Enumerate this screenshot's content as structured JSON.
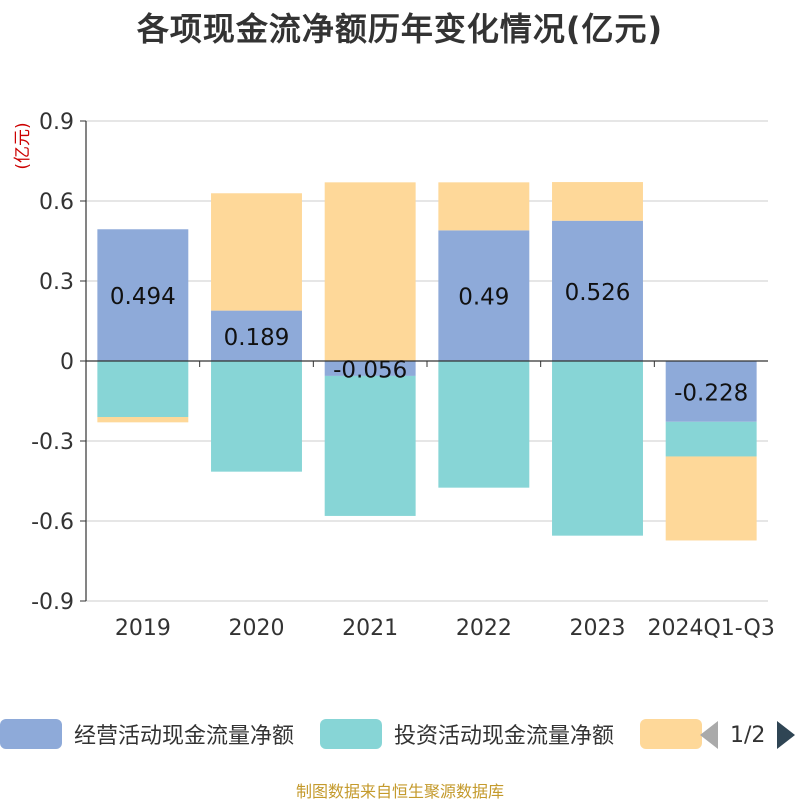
{
  "title": "各项现金流净额历年变化情况(亿元)",
  "unit_label": "(亿元)",
  "source_note": "制图数据来自恒生聚源数据库",
  "legend": {
    "items": [
      {
        "label": "经营活动现金流量净额",
        "color": "#8eaad9"
      },
      {
        "label": "投资活动现金流量净额",
        "color": "#87d5d6"
      },
      {
        "label": "",
        "color": "#fed899"
      }
    ],
    "page": "1/2"
  },
  "chart_data": {
    "type": "bar",
    "stacked": true,
    "categories": [
      "2019",
      "2020",
      "2021",
      "2022",
      "2023",
      "2024Q1-Q3"
    ],
    "ylim": [
      -0.9,
      0.9
    ],
    "yticks": [
      0.9,
      0.6,
      0.3,
      0,
      -0.3,
      -0.6,
      -0.9
    ],
    "ytick_labels": [
      "0.9",
      "0.6",
      "0.3",
      "0",
      "-0.3",
      "-0.6",
      "-0.9"
    ],
    "grid": true,
    "legend_position": "bottom",
    "series": [
      {
        "name": "经营活动现金流量净额",
        "color": "#8eaad9",
        "values": [
          0.494,
          0.189,
          -0.056,
          0.49,
          0.526,
          -0.228
        ],
        "labels": [
          "0.494",
          "0.189",
          "-0.056",
          "0.49",
          "0.526",
          "-0.228"
        ]
      },
      {
        "name": "投资活动现金流量净额",
        "color": "#87d5d6",
        "values": [
          -0.21,
          -0.415,
          -0.525,
          -0.475,
          -0.655,
          -0.13
        ]
      },
      {
        "color": "#fed899",
        "values": [
          -0.02,
          0.44,
          0.67,
          0.18,
          0.145,
          -0.315
        ]
      }
    ]
  }
}
